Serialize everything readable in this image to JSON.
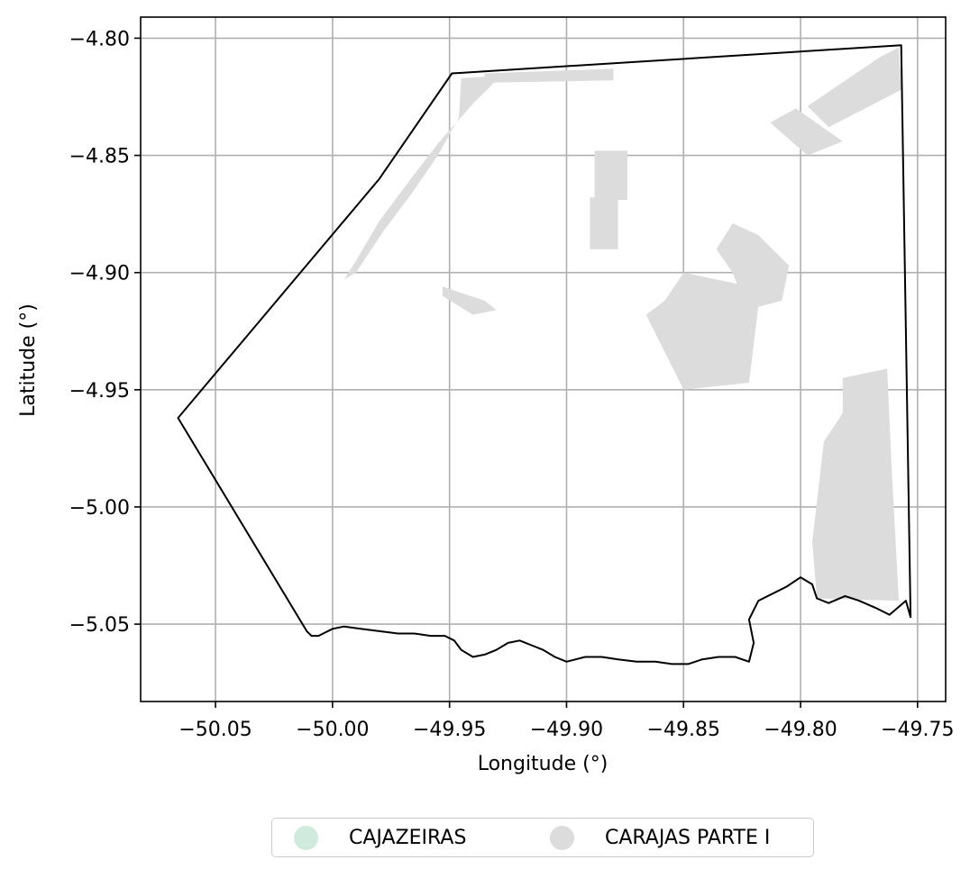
{
  "chart_data": {
    "type": "map",
    "title": "",
    "xlabel": "Longitude (°)",
    "ylabel": "Latitude (°)",
    "xlim": [
      -50.082,
      -49.738
    ],
    "ylim": [
      -5.083,
      -4.791
    ],
    "xticks": [
      -50.05,
      -50.0,
      -49.95,
      -49.9,
      -49.85,
      -49.8,
      -49.75
    ],
    "xtick_labels": [
      "−50.05",
      "−50.00",
      "−49.95",
      "−49.90",
      "−49.85",
      "−49.80",
      "−49.75"
    ],
    "yticks": [
      -4.8,
      -4.85,
      -4.9,
      -4.95,
      -5.0,
      -5.05
    ],
    "ytick_labels": [
      "−4.80",
      "−4.85",
      "−4.90",
      "−4.95",
      "−5.00",
      "−5.05"
    ],
    "grid": true,
    "legend_position": "bottom-center",
    "legend": [
      {
        "label": "CAJAZEIRAS",
        "color": "#d0ebdd"
      },
      {
        "label": "CARAJAS PARTE I",
        "color": "#dcdcdc"
      }
    ],
    "boundary": {
      "color": "#000000",
      "points": [
        [
          -49.949,
          -4.815
        ],
        [
          -49.757,
          -4.803
        ],
        [
          -49.753,
          -5.047
        ],
        [
          -49.755,
          -5.04
        ],
        [
          -49.762,
          -5.046
        ],
        [
          -49.768,
          -5.043
        ],
        [
          -49.775,
          -5.04
        ],
        [
          -49.781,
          -5.038
        ],
        [
          -49.788,
          -5.041
        ],
        [
          -49.793,
          -5.039
        ],
        [
          -49.795,
          -5.033
        ],
        [
          -49.8,
          -5.03
        ],
        [
          -49.806,
          -5.034
        ],
        [
          -49.812,
          -5.037
        ],
        [
          -49.818,
          -5.04
        ],
        [
          -49.822,
          -5.048
        ],
        [
          -49.82,
          -5.058
        ],
        [
          -49.822,
          -5.066
        ],
        [
          -49.828,
          -5.064
        ],
        [
          -49.835,
          -5.064
        ],
        [
          -49.842,
          -5.065
        ],
        [
          -49.848,
          -5.067
        ],
        [
          -49.855,
          -5.067
        ],
        [
          -49.862,
          -5.066
        ],
        [
          -49.87,
          -5.066
        ],
        [
          -49.878,
          -5.065
        ],
        [
          -49.885,
          -5.064
        ],
        [
          -49.892,
          -5.064
        ],
        [
          -49.9,
          -5.066
        ],
        [
          -49.905,
          -5.064
        ],
        [
          -49.91,
          -5.061
        ],
        [
          -49.915,
          -5.059
        ],
        [
          -49.92,
          -5.057
        ],
        [
          -49.925,
          -5.058
        ],
        [
          -49.93,
          -5.061
        ],
        [
          -49.935,
          -5.063
        ],
        [
          -49.94,
          -5.064
        ],
        [
          -49.945,
          -5.061
        ],
        [
          -49.948,
          -5.057
        ],
        [
          -49.952,
          -5.055
        ],
        [
          -49.958,
          -5.055
        ],
        [
          -49.965,
          -5.054
        ],
        [
          -49.972,
          -5.054
        ],
        [
          -49.98,
          -5.053
        ],
        [
          -49.988,
          -5.052
        ],
        [
          -49.995,
          -5.051
        ],
        [
          -50.0,
          -5.052
        ],
        [
          -50.006,
          -5.055
        ],
        [
          -50.009,
          -5.055
        ],
        [
          -50.011,
          -5.053
        ],
        [
          -50.066,
          -4.962
        ],
        [
          -49.98,
          -4.86
        ],
        [
          -49.949,
          -4.815
        ]
      ]
    },
    "regions": [
      {
        "name": "CARAJAS PARTE I",
        "color": "#dcdcdc",
        "polygons": [
          [
            [
              -49.945,
              -4.817
            ],
            [
              -49.928,
              -4.816
            ],
            [
              -49.94,
              -4.828
            ],
            [
              -49.955,
              -4.845
            ],
            [
              -49.968,
              -4.862
            ],
            [
              -49.98,
              -4.878
            ],
            [
              -49.99,
              -4.895
            ],
            [
              -49.995,
              -4.903
            ],
            [
              -49.99,
              -4.9
            ],
            [
              -49.978,
              -4.882
            ],
            [
              -49.966,
              -4.866
            ],
            [
              -49.955,
              -4.85
            ],
            [
              -49.946,
              -4.834
            ]
          ],
          [
            [
              -49.935,
              -4.815
            ],
            [
              -49.88,
              -4.813
            ],
            [
              -49.88,
              -4.818
            ],
            [
              -49.935,
              -4.819
            ]
          ],
          [
            [
              -49.766,
              -4.808
            ],
            [
              -49.758,
              -4.804
            ],
            [
              -49.757,
              -4.822
            ],
            [
              -49.788,
              -4.838
            ],
            [
              -49.797,
              -4.829
            ]
          ],
          [
            [
              -49.782,
              -4.844
            ],
            [
              -49.802,
              -4.83
            ],
            [
              -49.813,
              -4.836
            ],
            [
              -49.797,
              -4.85
            ]
          ],
          [
            [
              -49.888,
              -4.848
            ],
            [
              -49.874,
              -4.848
            ],
            [
              -49.874,
              -4.869
            ],
            [
              -49.888,
              -4.869
            ]
          ],
          [
            [
              -49.89,
              -4.868
            ],
            [
              -49.878,
              -4.868
            ],
            [
              -49.878,
              -4.89
            ],
            [
              -49.89,
              -4.89
            ]
          ],
          [
            [
              -49.85,
              -4.9
            ],
            [
              -49.858,
              -4.912
            ],
            [
              -49.866,
              -4.918
            ],
            [
              -49.85,
              -4.95
            ],
            [
              -49.822,
              -4.947
            ],
            [
              -49.818,
              -4.914
            ],
            [
              -49.826,
              -4.905
            ]
          ],
          [
            [
              -49.829,
              -4.879
            ],
            [
              -49.818,
              -4.884
            ],
            [
              -49.812,
              -4.89
            ],
            [
              -49.805,
              -4.897
            ],
            [
              -49.808,
              -4.912
            ],
            [
              -49.823,
              -4.916
            ],
            [
              -49.829,
              -4.9
            ],
            [
              -49.836,
              -4.89
            ]
          ],
          [
            [
              -49.77,
              -4.95
            ],
            [
              -49.763,
              -4.946
            ],
            [
              -49.766,
              -4.985
            ],
            [
              -49.773,
              -4.985
            ],
            [
              -49.77,
              -4.945
            ]
          ],
          [
            [
              -49.782,
              -4.945
            ],
            [
              -49.763,
              -4.941
            ],
            [
              -49.761,
              -4.985
            ],
            [
              -49.758,
              -5.04
            ],
            [
              -49.793,
              -5.039
            ],
            [
              -49.795,
              -5.015
            ],
            [
              -49.79,
              -4.972
            ],
            [
              -49.782,
              -4.96
            ]
          ],
          [
            [
              -49.953,
              -4.906
            ],
            [
              -49.935,
              -4.912
            ],
            [
              -49.93,
              -4.916
            ],
            [
              -49.94,
              -4.918
            ],
            [
              -49.953,
              -4.91
            ]
          ]
        ]
      },
      {
        "name": "CAJAZEIRAS",
        "color": "#d0ebdd",
        "polygons": []
      }
    ]
  }
}
